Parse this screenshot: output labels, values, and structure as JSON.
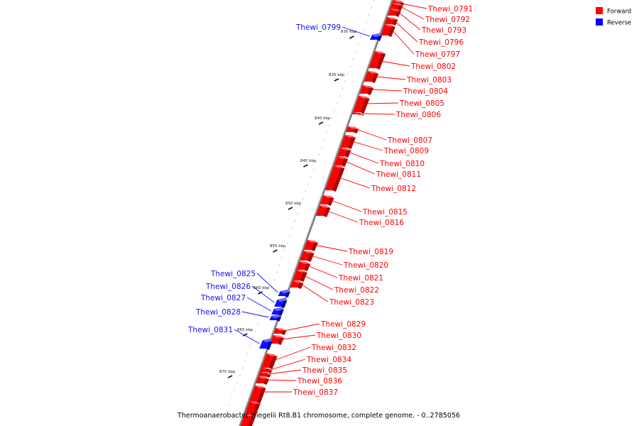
{
  "caption": "Thermoanaerobacter wiegelii Rt8.B1 chromosome, complete genome. - 0..2785056",
  "legend": [
    {
      "label": "Forward",
      "color": "#ff0000"
    },
    {
      "label": "Reverse",
      "color": "#0000ff"
    }
  ],
  "colors": {
    "forward": "#ff0000",
    "forward_side": "#b00000",
    "reverse": "#1010ff",
    "reverse_side": "#0000a0",
    "axis": "#777777"
  },
  "ticks": [
    "830 kbp",
    "835 kbp",
    "840 kbp",
    "845 kbp",
    "850 kbp",
    "855 kbp",
    "860 kbp",
    "865 kbp",
    "870 kbp"
  ],
  "genes": [
    {
      "name": "Thewi_0791",
      "strand": "forward"
    },
    {
      "name": "Thewi_0792",
      "strand": "forward"
    },
    {
      "name": "Thewi_0793",
      "strand": "forward"
    },
    {
      "name": "Thewi_0796",
      "strand": "forward"
    },
    {
      "name": "Thewi_0797",
      "strand": "forward"
    },
    {
      "name": "Thewi_0799",
      "strand": "reverse"
    },
    {
      "name": "Thewi_0802",
      "strand": "forward"
    },
    {
      "name": "Thewi_0803",
      "strand": "forward"
    },
    {
      "name": "Thewi_0804",
      "strand": "forward"
    },
    {
      "name": "Thewi_0805",
      "strand": "forward"
    },
    {
      "name": "Thewi_0806",
      "strand": "forward"
    },
    {
      "name": "Thewi_0807",
      "strand": "forward"
    },
    {
      "name": "Thewi_0809",
      "strand": "forward"
    },
    {
      "name": "Thewi_0810",
      "strand": "forward"
    },
    {
      "name": "Thewi_0811",
      "strand": "forward"
    },
    {
      "name": "Thewi_0812",
      "strand": "forward"
    },
    {
      "name": "Thewi_0815",
      "strand": "forward"
    },
    {
      "name": "Thewi_0816",
      "strand": "forward"
    },
    {
      "name": "Thewi_0819",
      "strand": "forward"
    },
    {
      "name": "Thewi_0820",
      "strand": "forward"
    },
    {
      "name": "Thewi_0821",
      "strand": "forward"
    },
    {
      "name": "Thewi_0822",
      "strand": "forward"
    },
    {
      "name": "Thewi_0823",
      "strand": "forward"
    },
    {
      "name": "Thewi_0825",
      "strand": "reverse"
    },
    {
      "name": "Thewi_0826",
      "strand": "reverse"
    },
    {
      "name": "Thewi_0827",
      "strand": "reverse"
    },
    {
      "name": "Thewi_0828",
      "strand": "reverse"
    },
    {
      "name": "Thewi_0829",
      "strand": "forward"
    },
    {
      "name": "Thewi_0830",
      "strand": "forward"
    },
    {
      "name": "Thewi_0831",
      "strand": "reverse"
    },
    {
      "name": "Thewi_0832",
      "strand": "forward"
    },
    {
      "name": "Thewi_0834",
      "strand": "forward"
    },
    {
      "name": "Thewi_0835",
      "strand": "forward"
    },
    {
      "name": "Thewi_0836",
      "strand": "forward"
    },
    {
      "name": "Thewi_0837",
      "strand": "forward"
    }
  ]
}
